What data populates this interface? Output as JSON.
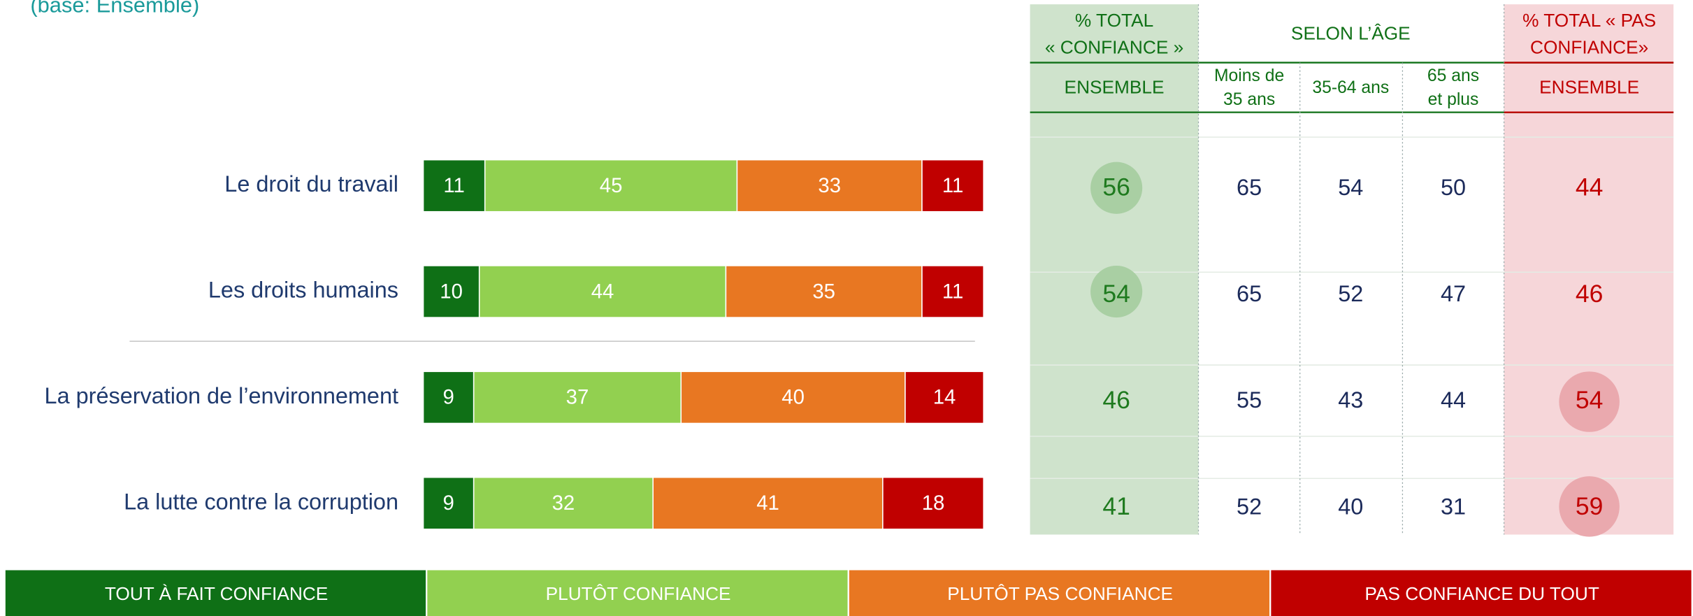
{
  "chart_data": {
    "type": "bar",
    "orientation": "horizontal",
    "stacked": true,
    "subtitle": "(base: Ensemble)",
    "categories": [
      "Le droit du travail",
      "Les droits humains",
      "La préservation de l’environnement",
      "La lutte contre la corruption"
    ],
    "series": [
      {
        "name": "TOUT À FAIT CONFIANCE",
        "color": "#0f7016",
        "values": [
          11,
          10,
          9,
          9
        ]
      },
      {
        "name": "PLUTÔT CONFIANCE",
        "color": "#92d050",
        "values": [
          45,
          44,
          37,
          32
        ]
      },
      {
        "name": "PLUTÔT PAS CONFIANCE",
        "color": "#e87722",
        "values": [
          33,
          35,
          40,
          41
        ]
      },
      {
        "name": "PAS CONFIANCE DU TOUT",
        "color": "#c00000",
        "values": [
          11,
          11,
          14,
          18
        ]
      }
    ],
    "xlim": [
      0,
      100
    ],
    "legend": "bottom"
  },
  "table": {
    "confiance_header": [
      "% TOTAL",
      "« CONFIANCE »"
    ],
    "age_header": "SELON L’ÂGE",
    "pas_header": [
      "% TOTAL « PAS",
      "CONFIANCE»"
    ],
    "confiance_sub": "ENSEMBLE",
    "age_sub": [
      [
        "Moins de",
        "35 ans"
      ],
      [
        "35-64 ans"
      ],
      [
        "65 ans",
        "et plus"
      ]
    ],
    "pas_sub": "ENSEMBLE",
    "confiance": [
      56,
      54,
      46,
      41
    ],
    "age": [
      [
        65,
        54,
        50
      ],
      [
        65,
        52,
        47
      ],
      [
        55,
        43,
        44
      ],
      [
        52,
        40,
        31
      ]
    ],
    "pas": [
      44,
      46,
      54,
      59
    ]
  }
}
